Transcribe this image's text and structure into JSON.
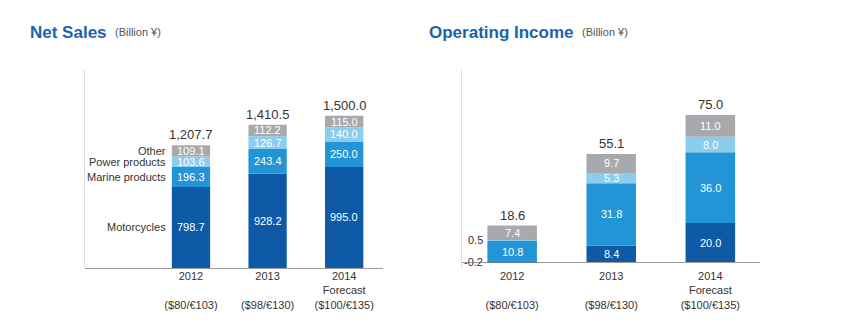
{
  "chart_data": [
    {
      "type": "bar",
      "title": "Net Sales",
      "subtitle": "(Billion ¥)",
      "categories": [
        "2012\n\n($80/€103)",
        "2013\n\n($98/€130)",
        "2014\nForecast\n($100/€135)"
      ],
      "series": [
        {
          "name": "Motorcycles",
          "color": "#0e5aa6",
          "values": [
            798.7,
            928.2,
            995.0
          ],
          "value_labels": [
            "798.7",
            "928.2",
            "995.0"
          ]
        },
        {
          "name": "Marine products",
          "color": "#2394d6",
          "values": [
            196.3,
            243.4,
            250.0
          ],
          "value_labels": [
            "196.3",
            "243.4",
            "250.0"
          ]
        },
        {
          "name": "Power products",
          "color": "#8bcdee",
          "values": [
            103.6,
            126.7,
            140.0
          ],
          "value_labels": [
            "103.6",
            "126.7",
            "140.0"
          ]
        },
        {
          "name": "Other",
          "color": "#a7a9ac",
          "values": [
            109.1,
            112.2,
            115.0
          ],
          "value_labels": [
            "109.1",
            "112.2",
            "115.0"
          ]
        }
      ],
      "totals": [
        1207.7,
        1410.5,
        1500.0
      ],
      "total_labels": [
        "1,207.7",
        "1,410.5",
        "1,500.0"
      ],
      "ylim": [
        0,
        1950
      ],
      "yticks": [],
      "stacked": true,
      "data_labels": true,
      "grid": false,
      "tick_labels": "x",
      "legend": "left"
    },
    {
      "type": "bar",
      "title": "Operating Income",
      "subtitle": "(Billion ¥)",
      "categories": [
        "2012\n\n($80/€103)",
        "2013\n\n($98/€130)",
        "2014\nForecast\n($100/€135)"
      ],
      "series": [
        {
          "name": "Motorcycles",
          "color": "#0e5aa6",
          "values": [
            -0.2,
            8.4,
            20.0
          ],
          "value_labels": [
            "-0.2",
            "8.4",
            "20.0"
          ]
        },
        {
          "name": "Marine products",
          "color": "#2394d6",
          "values": [
            10.8,
            31.8,
            36.0
          ],
          "value_labels": [
            "10.8",
            "31.8",
            "36.0"
          ]
        },
        {
          "name": "Power products",
          "color": "#8bcdee",
          "values": [
            0.5,
            5.3,
            8.0
          ],
          "value_labels": [
            "0.5",
            "5.3",
            "8.0"
          ]
        },
        {
          "name": "Other",
          "color": "#a7a9ac",
          "values": [
            7.4,
            9.7,
            11.0
          ],
          "value_labels": [
            "7.4",
            "9.7",
            "11.0"
          ]
        }
      ],
      "totals": [
        18.6,
        55.1,
        75.0
      ],
      "total_labels": [
        "18.6",
        "55.1",
        "75.0"
      ],
      "ylim": [
        -3,
        98
      ],
      "yticks": [],
      "stacked": true,
      "data_labels": true,
      "grid": false,
      "tick_labels": "x"
    }
  ]
}
